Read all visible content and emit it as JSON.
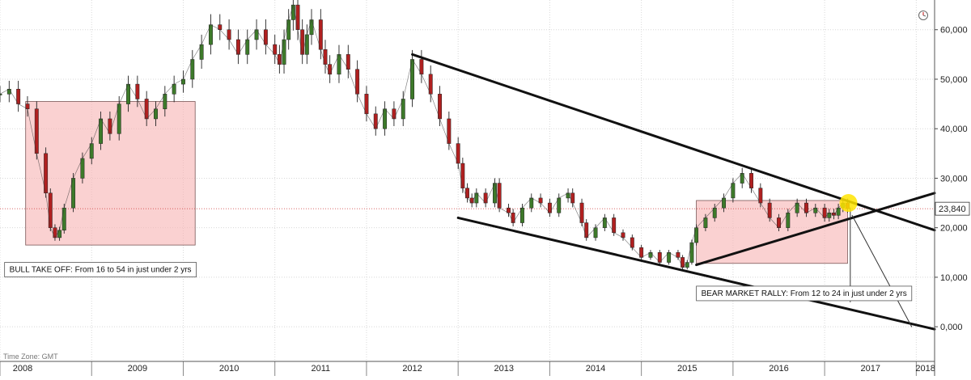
{
  "chart_data": {
    "type": "candlestick",
    "timezone_label": "Time Zone: GMT",
    "x_ticks": [
      "2008",
      "2009",
      "2010",
      "2011",
      "2012",
      "2013",
      "2014",
      "2015",
      "2016",
      "2017",
      "2018"
    ],
    "y_ticks": [
      "0,000",
      "10,000",
      "20,000",
      "30,000",
      "40,000",
      "50,000",
      "60,000"
    ],
    "y_tick_values": [
      0,
      10000,
      20000,
      30000,
      40000,
      50000,
      60000
    ],
    "ylim": [
      -7000,
      66000
    ],
    "xlim": [
      2008.0,
      2018.2
    ],
    "last_price": 23840,
    "last_price_label": "23,840",
    "grid": true,
    "price_series": [
      {
        "x": 2008.0,
        "y": 47000
      },
      {
        "x": 2008.1,
        "y": 48000
      },
      {
        "x": 2008.2,
        "y": 45000
      },
      {
        "x": 2008.3,
        "y": 44000
      },
      {
        "x": 2008.4,
        "y": 35000
      },
      {
        "x": 2008.5,
        "y": 27000
      },
      {
        "x": 2008.55,
        "y": 20000
      },
      {
        "x": 2008.6,
        "y": 18000
      },
      {
        "x": 2008.65,
        "y": 19500
      },
      {
        "x": 2008.7,
        "y": 24000
      },
      {
        "x": 2008.8,
        "y": 30000
      },
      {
        "x": 2008.9,
        "y": 34000
      },
      {
        "x": 2009.0,
        "y": 37000
      },
      {
        "x": 2009.1,
        "y": 42000
      },
      {
        "x": 2009.2,
        "y": 39000
      },
      {
        "x": 2009.3,
        "y": 45000
      },
      {
        "x": 2009.4,
        "y": 49000
      },
      {
        "x": 2009.5,
        "y": 46000
      },
      {
        "x": 2009.6,
        "y": 42000
      },
      {
        "x": 2009.7,
        "y": 44000
      },
      {
        "x": 2009.8,
        "y": 47000
      },
      {
        "x": 2009.9,
        "y": 49000
      },
      {
        "x": 2010.0,
        "y": 50000
      },
      {
        "x": 2010.1,
        "y": 54000
      },
      {
        "x": 2010.2,
        "y": 57000
      },
      {
        "x": 2010.3,
        "y": 61000
      },
      {
        "x": 2010.4,
        "y": 60000
      },
      {
        "x": 2010.5,
        "y": 58000
      },
      {
        "x": 2010.6,
        "y": 55000
      },
      {
        "x": 2010.7,
        "y": 58000
      },
      {
        "x": 2010.8,
        "y": 60000
      },
      {
        "x": 2010.9,
        "y": 57000
      },
      {
        "x": 2011.0,
        "y": 55000
      },
      {
        "x": 2011.05,
        "y": 53000
      },
      {
        "x": 2011.1,
        "y": 58000
      },
      {
        "x": 2011.15,
        "y": 62000
      },
      {
        "x": 2011.2,
        "y": 65000
      },
      {
        "x": 2011.25,
        "y": 60000
      },
      {
        "x": 2011.3,
        "y": 55000
      },
      {
        "x": 2011.35,
        "y": 59000
      },
      {
        "x": 2011.4,
        "y": 62000
      },
      {
        "x": 2011.5,
        "y": 56000
      },
      {
        "x": 2011.55,
        "y": 53000
      },
      {
        "x": 2011.6,
        "y": 51000
      },
      {
        "x": 2011.7,
        "y": 55000
      },
      {
        "x": 2011.8,
        "y": 52000
      },
      {
        "x": 2011.9,
        "y": 47000
      },
      {
        "x": 2012.0,
        "y": 43000
      },
      {
        "x": 2012.1,
        "y": 40000
      },
      {
        "x": 2012.2,
        "y": 44000
      },
      {
        "x": 2012.3,
        "y": 42000
      },
      {
        "x": 2012.4,
        "y": 46000
      },
      {
        "x": 2012.5,
        "y": 54000
      },
      {
        "x": 2012.6,
        "y": 51000
      },
      {
        "x": 2012.7,
        "y": 47000
      },
      {
        "x": 2012.8,
        "y": 42000
      },
      {
        "x": 2012.9,
        "y": 37000
      },
      {
        "x": 2013.0,
        "y": 33000
      },
      {
        "x": 2013.05,
        "y": 28000
      },
      {
        "x": 2013.1,
        "y": 26000
      },
      {
        "x": 2013.15,
        "y": 25000
      },
      {
        "x": 2013.2,
        "y": 27000
      },
      {
        "x": 2013.3,
        "y": 25000
      },
      {
        "x": 2013.4,
        "y": 29000
      },
      {
        "x": 2013.45,
        "y": 24000
      },
      {
        "x": 2013.55,
        "y": 23000
      },
      {
        "x": 2013.6,
        "y": 21000
      },
      {
        "x": 2013.7,
        "y": 24000
      },
      {
        "x": 2013.8,
        "y": 26000
      },
      {
        "x": 2013.9,
        "y": 25000
      },
      {
        "x": 2014.0,
        "y": 23000
      },
      {
        "x": 2014.1,
        "y": 26000
      },
      {
        "x": 2014.2,
        "y": 27000
      },
      {
        "x": 2014.25,
        "y": 25000
      },
      {
        "x": 2014.35,
        "y": 21000
      },
      {
        "x": 2014.4,
        "y": 18000
      },
      {
        "x": 2014.5,
        "y": 20000
      },
      {
        "x": 2014.6,
        "y": 22000
      },
      {
        "x": 2014.7,
        "y": 19000
      },
      {
        "x": 2014.8,
        "y": 18000
      },
      {
        "x": 2014.9,
        "y": 16000
      },
      {
        "x": 2015.0,
        "y": 14000
      },
      {
        "x": 2015.1,
        "y": 15000
      },
      {
        "x": 2015.2,
        "y": 13000
      },
      {
        "x": 2015.3,
        "y": 15000
      },
      {
        "x": 2015.4,
        "y": 14000
      },
      {
        "x": 2015.45,
        "y": 12000
      },
      {
        "x": 2015.5,
        "y": 13000
      },
      {
        "x": 2015.55,
        "y": 17000
      },
      {
        "x": 2015.6,
        "y": 20000
      },
      {
        "x": 2015.7,
        "y": 22000
      },
      {
        "x": 2015.8,
        "y": 24000
      },
      {
        "x": 2015.9,
        "y": 26000
      },
      {
        "x": 2016.0,
        "y": 29000
      },
      {
        "x": 2016.1,
        "y": 31000
      },
      {
        "x": 2016.2,
        "y": 28000
      },
      {
        "x": 2016.3,
        "y": 25000
      },
      {
        "x": 2016.4,
        "y": 22000
      },
      {
        "x": 2016.5,
        "y": 20000
      },
      {
        "x": 2016.6,
        "y": 23000
      },
      {
        "x": 2016.7,
        "y": 25000
      },
      {
        "x": 2016.8,
        "y": 23000
      },
      {
        "x": 2016.9,
        "y": 24000
      },
      {
        "x": 2017.0,
        "y": 22000
      },
      {
        "x": 2017.05,
        "y": 23000
      },
      {
        "x": 2017.1,
        "y": 22500
      },
      {
        "x": 2017.15,
        "y": 24000
      },
      {
        "x": 2017.2,
        "y": 25000
      },
      {
        "x": 2017.25,
        "y": 23840
      }
    ],
    "trend_lines": [
      {
        "name": "upper-channel",
        "from": {
          "x": 2012.5,
          "y": 55000
        },
        "to": {
          "x": 2018.2,
          "y": 19500
        }
      },
      {
        "name": "lower-channel",
        "from": {
          "x": 2013.0,
          "y": 22000
        },
        "to": {
          "x": 2018.2,
          "y": -500
        }
      },
      {
        "name": "rally-trend",
        "from": {
          "x": 2015.6,
          "y": 12500
        },
        "to": {
          "x": 2018.2,
          "y": 27000
        }
      },
      {
        "name": "projection",
        "from": {
          "x": 2017.3,
          "y": 22500
        },
        "to": {
          "x": 2017.95,
          "y": 0
        }
      },
      {
        "name": "drop-marker",
        "from": {
          "x": 2017.28,
          "y": 24000
        },
        "to": {
          "x": 2017.28,
          "y": 5000
        }
      }
    ],
    "highlight_boxes": [
      {
        "name": "bull-box",
        "x0": 2008.28,
        "x1": 2010.13,
        "y0": 16500,
        "y1": 45500
      },
      {
        "name": "bear-box",
        "x0": 2015.6,
        "x1": 2017.25,
        "y0": 12800,
        "y1": 25500
      }
    ],
    "marker": {
      "x": 2017.26,
      "y": 25000
    },
    "annotations": [
      {
        "text": "BULL TAKE OFF: From 16 to 54 in just under 2 yrs",
        "x": 2008.05,
        "y": 13000
      },
      {
        "text": "BEAR MARKET RALLY: From 12 to 24 in just under 2 yrs",
        "x": 2015.6,
        "y": 8200
      }
    ]
  }
}
